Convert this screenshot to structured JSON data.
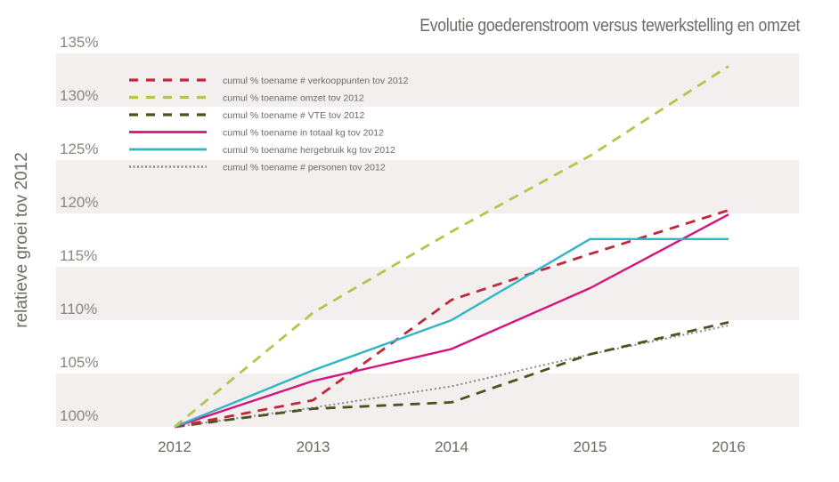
{
  "chart_data": {
    "type": "line",
    "title": "Evolutie goederenstroom versus tewerkstelling en omzet",
    "xlabel": "",
    "ylabel": "relatieve groei tov 2012",
    "x": [
      "2012",
      "2013",
      "2014",
      "2015",
      "2016"
    ],
    "ylim": [
      100,
      135
    ],
    "yticks": [
      "100%",
      "105%",
      "110%",
      "115%",
      "120%",
      "125%",
      "130%",
      "135%"
    ],
    "ytick_values": [
      100,
      105,
      110,
      115,
      120,
      125,
      130,
      135
    ],
    "grid": "alternating horizontal bands",
    "legend_position": "top-left",
    "series": [
      {
        "name": "cumul % toename # verkooppunten tov 2012",
        "color": "#c0283a",
        "style": "dashed",
        "values": [
          100,
          102.5,
          111.9,
          116.2,
          120.3
        ]
      },
      {
        "name": "cumul % toename omzet tov 2012",
        "color": "#b5c44a",
        "style": "dashed",
        "values": [
          100,
          110.7,
          118.3,
          125.4,
          133.8
        ]
      },
      {
        "name": "cumul % toename # VTE tov 2012",
        "color": "#4e5220",
        "style": "dashed",
        "values": [
          100,
          101.7,
          102.3,
          106.8,
          109.8
        ]
      },
      {
        "name": "cumul % toename in totaal kg tov 2012",
        "color": "#d4137d",
        "style": "solid",
        "values": [
          100,
          104.3,
          107.3,
          113.0,
          119.9
        ]
      },
      {
        "name": "cumul % toename hergebruik kg tov 2012",
        "color": "#2fb5c4",
        "style": "solid",
        "values": [
          100,
          105.3,
          110.0,
          117.6,
          117.6
        ]
      },
      {
        "name": "cumul % toename # personen tov 2012",
        "color": "#8c8781",
        "style": "dotted",
        "values": [
          100,
          101.8,
          103.8,
          106.8,
          109.5
        ]
      }
    ]
  }
}
